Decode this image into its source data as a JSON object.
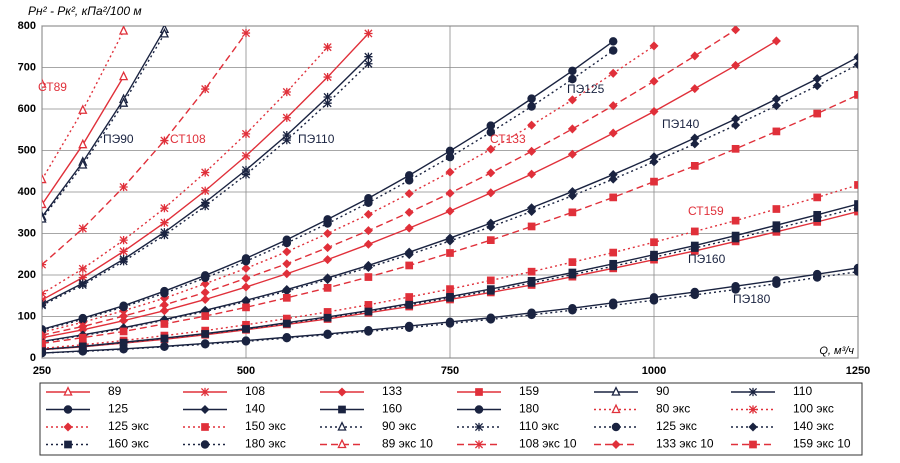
{
  "chart_data": {
    "type": "line",
    "title": "Pн² - Pк², кПа²/100 м",
    "x_label": "Q, м³/ч",
    "xlim": [
      250,
      1250
    ],
    "xticks": [
      250,
      500,
      750,
      1000,
      1250
    ],
    "ylim": [
      0,
      800
    ],
    "yticks": [
      0,
      100,
      200,
      300,
      400,
      500,
      600,
      700,
      800
    ],
    "grid": true,
    "x": [
      250,
      300,
      350,
      400,
      450,
      500,
      550,
      600,
      650,
      700,
      750,
      800,
      850,
      900,
      950,
      1000,
      1050,
      1100,
      1150,
      1200,
      1250
    ],
    "annotations": [
      "СТ89",
      "ПЭ90",
      "СТ108",
      "ПЭ110",
      "СТ133",
      "ПЭ125",
      "ПЭ140",
      "СТ159",
      "ПЭ160",
      "ПЭ180"
    ],
    "series": [
      {
        "name": "89",
        "color": "#e0303a",
        "dash": "solid",
        "marker": "triangle",
        "values": [
          370,
          514,
          678,
          null,
          null,
          null,
          null,
          null,
          null,
          null,
          null,
          null,
          null,
          null,
          null,
          null,
          null,
          null,
          null,
          null,
          null
        ]
      },
      {
        "name": "108",
        "color": "#e0303a",
        "dash": "solid",
        "marker": "asterisk",
        "values": [
          140,
          194,
          257,
          326,
          403,
          487,
          579,
          677,
          782,
          null,
          null,
          null,
          null,
          null,
          null,
          null,
          null,
          null,
          null,
          null,
          null
        ]
      },
      {
        "name": "133",
        "color": "#e0303a",
        "dash": "solid",
        "marker": "diamond",
        "values": [
          49,
          68,
          90,
          114,
          141,
          171,
          203,
          237,
          274,
          313,
          354,
          398,
          443,
          491,
          542,
          594,
          649,
          705,
          764,
          null,
          null
        ]
      },
      {
        "name": "159",
        "color": "#e0303a",
        "dash": "solid",
        "marker": "square",
        "values": [
          20,
          27,
          36,
          45,
          56,
          68,
          81,
          94,
          109,
          124,
          141,
          158,
          176,
          196,
          216,
          237,
          258,
          281,
          304,
          328,
          353
        ]
      },
      {
        "name": "90",
        "color": "#1a2340",
        "dash": "solid",
        "marker": "triangle",
        "values": [
          340,
          472,
          623,
          792,
          null,
          null,
          null,
          null,
          null,
          null,
          null,
          null,
          null,
          null,
          null,
          null,
          null,
          null,
          null,
          null,
          null
        ]
      },
      {
        "name": "110",
        "color": "#1a2340",
        "dash": "solid",
        "marker": "asterisk",
        "values": [
          130,
          180,
          238,
          303,
          375,
          453,
          537,
          629,
          726,
          null,
          null,
          null,
          null,
          null,
          null,
          null,
          null,
          null,
          null,
          null,
          null
        ]
      },
      {
        "name": "125",
        "color": "#1a2340",
        "dash": "solid",
        "marker": "circle",
        "values": [
          69,
          96,
          126,
          161,
          199,
          240,
          285,
          334,
          385,
          440,
          499,
          560,
          625,
          692,
          763,
          null,
          null,
          null,
          null,
          null,
          null
        ]
      },
      {
        "name": "140",
        "color": "#1a2340",
        "dash": "solid",
        "marker": "diamond",
        "values": [
          40,
          56,
          73,
          93,
          115,
          139,
          165,
          193,
          223,
          255,
          289,
          325,
          362,
          401,
          442,
          485,
          530,
          576,
          624,
          673,
          725
        ]
      },
      {
        "name": "160",
        "color": "#1a2340",
        "dash": "solid",
        "marker": "square",
        "values": [
          21,
          28,
          38,
          48,
          59,
          71,
          85,
          99,
          114,
          131,
          148,
          166,
          186,
          206,
          227,
          249,
          271,
          295,
          320,
          345,
          371
        ]
      },
      {
        "name": "180",
        "color": "#1a2340",
        "dash": "solid",
        "marker": "circle",
        "values": [
          12,
          17,
          22,
          28,
          35,
          42,
          50,
          58,
          67,
          77,
          87,
          97,
          109,
          120,
          133,
          146,
          159,
          173,
          187,
          202,
          217
        ]
      },
      {
        "name": "80 экс",
        "color": "#e0303a",
        "dash": "dotted",
        "marker": "triangle",
        "values": [
          430,
          597,
          788,
          null,
          null,
          null,
          null,
          null,
          null,
          null,
          null,
          null,
          null,
          null,
          null,
          null,
          null,
          null,
          null,
          null,
          null
        ]
      },
      {
        "name": "100 экс",
        "color": "#e0303a",
        "dash": "dotted",
        "marker": "asterisk",
        "values": [
          155,
          215,
          284,
          361,
          447,
          540,
          641,
          749,
          null,
          null,
          null,
          null,
          null,
          null,
          null,
          null,
          null,
          null,
          null,
          null,
          null
        ]
      },
      {
        "name": "125 экс",
        "color": "#e0303a",
        "dash": "dotted",
        "marker": "diamond",
        "values": [
          62,
          86,
          114,
          144,
          179,
          216,
          256,
          300,
          346,
          396,
          448,
          503,
          561,
          622,
          686,
          752,
          null,
          null,
          null,
          null,
          null
        ]
      },
      {
        "name": "150 экс",
        "color": "#e0303a",
        "dash": "dotted",
        "marker": "square",
        "values": [
          23,
          32,
          42,
          54,
          66,
          80,
          95,
          111,
          128,
          147,
          166,
          187,
          208,
          231,
          254,
          279,
          305,
          331,
          359,
          387,
          417
        ]
      },
      {
        "name": "90 экс",
        "color": "#1a2340",
        "dash": "dotted",
        "marker": "triangle",
        "values": [
          335,
          465,
          614,
          781,
          null,
          null,
          null,
          null,
          null,
          null,
          null,
          null,
          null,
          null,
          null,
          null,
          null,
          null,
          null,
          null,
          null
        ]
      },
      {
        "name": "110 экс",
        "color": "#1a2340",
        "dash": "dotted",
        "marker": "asterisk",
        "values": [
          127,
          176,
          233,
          296,
          366,
          442,
          525,
          614,
          709,
          null,
          null,
          null,
          null,
          null,
          null,
          null,
          null,
          null,
          null,
          null,
          null
        ]
      },
      {
        "name": "125 экс",
        "color": "#1a2340",
        "dash": "dotted",
        "marker": "circle",
        "values": [
          67,
          93,
          123,
          156,
          193,
          233,
          277,
          324,
          374,
          428,
          484,
          544,
          606,
          672,
          741,
          null,
          null,
          null,
          null,
          null,
          null
        ]
      },
      {
        "name": "140 экс",
        "color": "#1a2340",
        "dash": "dotted",
        "marker": "diamond",
        "values": [
          39,
          54,
          71,
          91,
          112,
          136,
          161,
          189,
          218,
          249,
          282,
          316,
          353,
          391,
          431,
          473,
          516,
          561,
          608,
          656,
          707
        ]
      },
      {
        "name": "160 экс",
        "color": "#1a2340",
        "dash": "dotted",
        "marker": "square",
        "values": [
          20,
          28,
          37,
          47,
          58,
          70,
          83,
          97,
          112,
          128,
          145,
          162,
          181,
          201,
          221,
          243,
          265,
          288,
          312,
          337,
          362
        ]
      },
      {
        "name": "180 экс",
        "color": "#1a2340",
        "dash": "dotted",
        "marker": "circle",
        "values": [
          12,
          16,
          21,
          27,
          33,
          40,
          48,
          56,
          64,
          73,
          83,
          93,
          104,
          115,
          127,
          139,
          152,
          165,
          179,
          194,
          208
        ]
      },
      {
        "name": "89 экс 10",
        "color": "#e0303a",
        "dash": "dashed",
        "marker": "triangle",
        "values": [
          660,
          null,
          null,
          null,
          null,
          null,
          null,
          null,
          null,
          null,
          null,
          null,
          null,
          null,
          null,
          null,
          null,
          null,
          null,
          null,
          null
        ]
      },
      {
        "name": "108 экс 10",
        "color": "#e0303a",
        "dash": "dashed",
        "marker": "asterisk",
        "values": [
          225,
          312,
          412,
          524,
          648,
          783,
          null,
          null,
          null,
          null,
          null,
          null,
          null,
          null,
          null,
          null,
          null,
          null,
          null,
          null,
          null
        ]
      },
      {
        "name": "133 экс 10",
        "color": "#e0303a",
        "dash": "dashed",
        "marker": "diamond",
        "values": [
          55,
          76,
          101,
          128,
          158,
          192,
          227,
          266,
          307,
          351,
          397,
          446,
          498,
          552,
          608,
          667,
          728,
          791,
          null,
          null,
          null
        ]
      },
      {
        "name": "159 экс 10",
        "color": "#e0303a",
        "dash": "dashed",
        "marker": "square",
        "values": [
          35,
          49,
          64,
          82,
          101,
          122,
          145,
          169,
          195,
          223,
          253,
          284,
          317,
          351,
          387,
          425,
          463,
          504,
          546,
          589,
          634
        ]
      }
    ]
  }
}
